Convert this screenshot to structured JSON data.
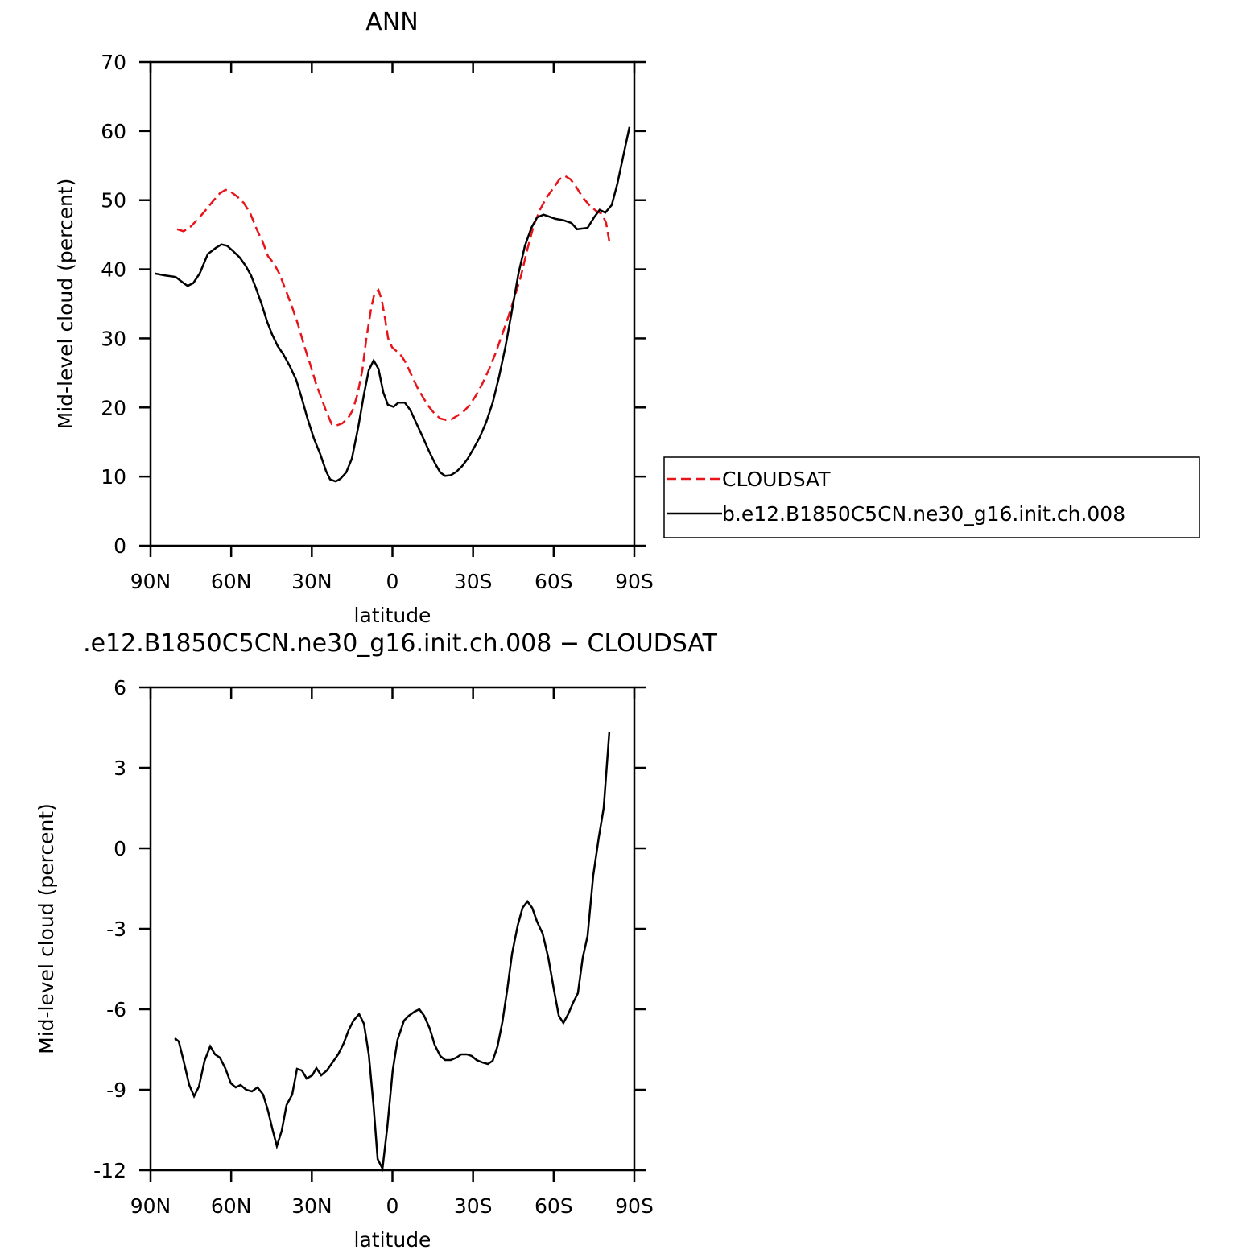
{
  "chart_data": [
    {
      "type": "line",
      "title": "ANN",
      "x_label": "latitude",
      "y_label": "Mid-level cloud (percent)",
      "xlim": [
        90,
        -90
      ],
      "ylim": [
        0,
        70
      ],
      "xticks": [
        {
          "value": 90,
          "label": "90N"
        },
        {
          "value": 60,
          "label": "60N"
        },
        {
          "value": 30,
          "label": "30N"
        },
        0,
        {
          "value": -30,
          "label": "30S"
        },
        {
          "value": -60,
          "label": "60S"
        },
        {
          "value": -90,
          "label": "90S"
        }
      ],
      "yticks": [
        0,
        10,
        20,
        30,
        40,
        50,
        60,
        70
      ],
      "legend": "right",
      "series": [
        {
          "name": "CLOUDSAT",
          "color": "#e8141a",
          "line_style": "dashed",
          "x": [
            80.1,
            77.7,
            75.0,
            72.3,
            69.6,
            66.9,
            64.2,
            62.1,
            60.1,
            57.7,
            55.3,
            52.9,
            50.5,
            48.1,
            46.3,
            44.2,
            42.1,
            39.7,
            37.3,
            35.2,
            32.8,
            30.4,
            28.3,
            26.2,
            24.4,
            22.6,
            20.8,
            18.7,
            16.6,
            14.8,
            13.0,
            11.2,
            9.7,
            7.9,
            6.7,
            5.2,
            4.0,
            2.8,
            1.6,
            0.1,
            -1.7,
            -3.5,
            -5.2,
            -7.3,
            -9.4,
            -11.5,
            -13.6,
            -15.7,
            -17.8,
            -19.9,
            -22.0,
            -24.1,
            -26.2,
            -28.6,
            -31.0,
            -33.4,
            -35.8,
            -38.2,
            -40.6,
            -43.0,
            -45.4,
            -47.8,
            -50.2,
            -52.6,
            -55.0,
            -57.4,
            -59.8,
            -62.1,
            -64.2,
            -66.3,
            -68.4,
            -70.8,
            -73.2,
            -75.6,
            -78.0,
            -79.5,
            -80.7
          ],
          "values": [
            45.8,
            45.5,
            46.2,
            47.3,
            48.5,
            49.8,
            51.0,
            51.5,
            51.2,
            50.5,
            49.6,
            48.1,
            45.8,
            43.8,
            41.9,
            40.9,
            39.4,
            37.0,
            34.5,
            32.1,
            28.9,
            26.0,
            23.3,
            21.1,
            19.2,
            17.6,
            17.4,
            17.7,
            18.4,
            19.6,
            21.9,
            25.4,
            30.0,
            34.4,
            36.5,
            37.0,
            35.6,
            33.0,
            30.0,
            28.7,
            28.1,
            27.4,
            26.3,
            24.5,
            22.8,
            21.4,
            20.1,
            19.1,
            18.4,
            18.2,
            18.3,
            18.8,
            19.3,
            20.3,
            21.7,
            23.4,
            25.4,
            27.7,
            30.3,
            33.0,
            35.9,
            39.0,
            42.9,
            46.4,
            48.7,
            50.4,
            51.7,
            53.0,
            53.5,
            53.0,
            51.9,
            50.4,
            49.3,
            48.5,
            48.0,
            46.7,
            44.0
          ]
        },
        {
          "name": "b.e12.B1850C5CN.ne30_g16.init.ch.008",
          "color": "#000000",
          "line_style": "solid",
          "x": [
            88.5,
            84.6,
            80.7,
            77.7,
            76.2,
            74.1,
            71.7,
            68.7,
            65.7,
            63.6,
            61.5,
            59.2,
            56.8,
            54.6,
            52.6,
            50.8,
            48.7,
            46.6,
            44.8,
            42.7,
            40.6,
            38.2,
            35.8,
            33.7,
            31.6,
            29.2,
            26.8,
            24.7,
            23.2,
            21.1,
            19.3,
            17.2,
            15.1,
            12.7,
            10.6,
            8.8,
            7.0,
            5.2,
            3.4,
            1.7,
            -0.4,
            -2.2,
            -4.6,
            -6.7,
            -8.8,
            -11.2,
            -13.6,
            -16.0,
            -17.8,
            -19.6,
            -21.7,
            -23.8,
            -25.9,
            -28.0,
            -30.1,
            -32.5,
            -34.9,
            -37.3,
            -39.7,
            -42.1,
            -44.5,
            -46.9,
            -49.3,
            -51.7,
            -53.8,
            -56.2,
            -58.5,
            -60.6,
            -63.6,
            -66.6,
            -68.7,
            -72.6,
            -75.0,
            -77.1,
            -79.2,
            -81.6,
            -83.7,
            -86.1,
            -88.2
          ],
          "values": [
            39.4,
            39.1,
            38.9,
            38.0,
            37.6,
            38.0,
            39.4,
            42.2,
            43.1,
            43.6,
            43.4,
            42.6,
            41.7,
            40.5,
            39.1,
            37.3,
            35.0,
            32.4,
            30.6,
            28.9,
            27.7,
            26.0,
            24.0,
            21.3,
            18.4,
            15.5,
            13.2,
            10.8,
            9.6,
            9.3,
            9.7,
            10.6,
            12.6,
            17.2,
            21.9,
            25.4,
            26.8,
            25.6,
            22.2,
            20.4,
            20.1,
            20.7,
            20.7,
            19.6,
            17.8,
            15.8,
            13.7,
            11.8,
            10.6,
            10.1,
            10.2,
            10.7,
            11.5,
            12.6,
            14.0,
            15.7,
            17.9,
            20.7,
            24.5,
            28.9,
            34.1,
            39.4,
            43.4,
            46.0,
            47.5,
            47.9,
            47.6,
            47.3,
            47.1,
            46.7,
            45.8,
            46.0,
            47.5,
            48.6,
            48.2,
            49.3,
            52.4,
            56.8,
            60.6
          ]
        }
      ]
    },
    {
      "type": "line",
      "title": ".e12.B1850C5CN.ne30_g16.init.ch.008 − CLOUDSAT",
      "x_label": "latitude",
      "y_label": "Mid-level cloud (percent)",
      "xlim": [
        90,
        -90
      ],
      "ylim": [
        -12,
        6
      ],
      "xticks": [
        {
          "value": 90,
          "label": "90N"
        },
        {
          "value": 60,
          "label": "60N"
        },
        {
          "value": 30,
          "label": "30N"
        },
        0,
        {
          "value": -30,
          "label": "30S"
        },
        {
          "value": -60,
          "label": "60S"
        },
        {
          "value": -90,
          "label": "90S"
        }
      ],
      "yticks": [
        -12,
        -9,
        -6,
        -3,
        0,
        3,
        6
      ],
      "series": [
        {
          "color": "#000000",
          "line_style": "solid",
          "x": [
            81.0,
            79.5,
            77.7,
            75.6,
            73.8,
            72.0,
            69.9,
            67.8,
            66.0,
            64.2,
            62.1,
            60.1,
            58.3,
            56.5,
            54.4,
            52.3,
            50.2,
            48.1,
            46.3,
            44.5,
            43.0,
            41.2,
            39.4,
            37.3,
            35.5,
            33.7,
            31.9,
            29.8,
            28.3,
            26.5,
            24.4,
            22.3,
            20.2,
            18.1,
            16.3,
            14.5,
            12.4,
            10.6,
            8.8,
            7.0,
            5.5,
            3.7,
            1.9,
            -0.1,
            -1.9,
            -4.3,
            -6.1,
            -8.2,
            -10.0,
            -11.8,
            -13.9,
            -15.7,
            -17.8,
            -19.6,
            -21.7,
            -23.8,
            -25.6,
            -27.7,
            -29.5,
            -31.3,
            -33.4,
            -35.5,
            -37.3,
            -39.1,
            -40.9,
            -42.7,
            -44.5,
            -46.6,
            -48.4,
            -50.2,
            -52.0,
            -53.8,
            -55.9,
            -58.0,
            -60.1,
            -61.9,
            -63.6,
            -65.4,
            -67.2,
            -69.0,
            -70.8,
            -72.6,
            -74.7,
            -76.8,
            -78.6,
            -80.7
          ],
          "values": [
            -7.08,
            -7.2,
            -7.92,
            -8.82,
            -9.24,
            -8.88,
            -7.92,
            -7.38,
            -7.68,
            -7.8,
            -8.22,
            -8.76,
            -8.91,
            -8.82,
            -9.0,
            -9.06,
            -8.91,
            -9.18,
            -9.78,
            -10.53,
            -11.1,
            -10.53,
            -9.57,
            -9.18,
            -8.22,
            -8.28,
            -8.58,
            -8.46,
            -8.19,
            -8.46,
            -8.28,
            -7.98,
            -7.68,
            -7.26,
            -6.78,
            -6.42,
            -6.18,
            -6.54,
            -7.68,
            -9.63,
            -11.58,
            -11.94,
            -10.38,
            -8.28,
            -7.14,
            -6.42,
            -6.24,
            -6.09,
            -6.0,
            -6.24,
            -6.72,
            -7.32,
            -7.74,
            -7.89,
            -7.89,
            -7.8,
            -7.68,
            -7.68,
            -7.74,
            -7.89,
            -7.98,
            -8.04,
            -7.92,
            -7.38,
            -6.48,
            -5.28,
            -3.93,
            -2.88,
            -2.22,
            -1.98,
            -2.22,
            -2.73,
            -3.18,
            -4.08,
            -5.28,
            -6.24,
            -6.51,
            -6.18,
            -5.76,
            -5.4,
            -4.08,
            -3.27,
            -1.02,
            0.42,
            1.5,
            4.35
          ]
        }
      ]
    }
  ]
}
